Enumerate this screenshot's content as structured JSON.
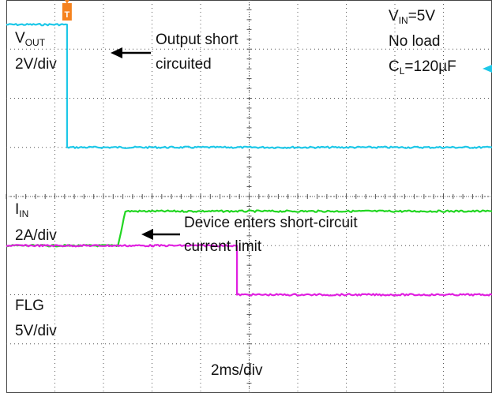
{
  "chart_data": {
    "type": "line",
    "title": "",
    "xlabel": "2ms/div",
    "xlim_ms": [
      -2.5,
      17.5
    ],
    "time_per_div_ms": 2,
    "grid": true,
    "trigger_marker": {
      "label": "T",
      "time_ms": 0,
      "color": "#f5821f"
    },
    "channels": [
      {
        "id": "vout",
        "name_main": "V",
        "name_sub": "OUT",
        "scale": "2V/div",
        "color": "#1ec8e8",
        "units_per_div": 2,
        "ylim": [
          -10,
          6
        ],
        "x_ms": [
          -2.5,
          0.0,
          0.0,
          17.5
        ],
        "values": [
          5.0,
          5.0,
          0.0,
          0.0
        ]
      },
      {
        "id": "iin",
        "name_main": "I",
        "name_sub": "IN",
        "scale": "2A/div",
        "color": "#22d622",
        "units_per_div": 2,
        "ylim": [
          -6,
          10
        ],
        "x_ms": [
          -2.5,
          2.1,
          2.4,
          17.5
        ],
        "values": [
          0.0,
          0.0,
          1.4,
          1.4
        ]
      },
      {
        "id": "flg",
        "name_main": "FLG",
        "name_sub": "",
        "scale": "5V/div",
        "color": "#e020e0",
        "units_per_div": 5,
        "ylim": [
          -10,
          30
        ],
        "x_ms": [
          -2.5,
          7.0,
          7.0,
          17.5
        ],
        "values": [
          5.0,
          5.0,
          0.0,
          0.0
        ]
      }
    ],
    "annotations": [
      {
        "id": "short",
        "lines": [
          "Output short",
          "circuited"
        ]
      },
      {
        "id": "limit",
        "lines": [
          "Device enters short-circuit",
          "current limit"
        ]
      }
    ],
    "conditions": {
      "vin_main": "V",
      "vin_sub": "IN",
      "vin_value": "=5V",
      "load": "No load",
      "cl_main": "C",
      "cl_sub": "L",
      "cl_value": "=120µF"
    }
  }
}
